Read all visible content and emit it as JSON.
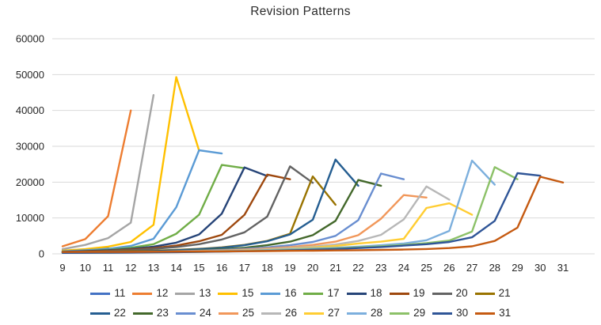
{
  "title": "Revision Patterns",
  "chart_data": {
    "type": "line",
    "title": "Revision Patterns",
    "xlabel": "",
    "ylabel": "",
    "x_categories": [
      9,
      10,
      11,
      12,
      13,
      14,
      15,
      16,
      17,
      18,
      19,
      20,
      21,
      22,
      23,
      24,
      25,
      26,
      27,
      28,
      29,
      30,
      31
    ],
    "ylim": [
      0,
      60000
    ],
    "y_ticks": [
      0,
      10000,
      20000,
      30000,
      40000,
      50000,
      60000
    ],
    "grid": true,
    "legend_position": "bottom",
    "legend_rows": [
      10,
      10
    ],
    "series": [
      {
        "name": "11",
        "color": "#4472C4",
        "x_start": 9,
        "values": [
          800,
          1200,
          1700
        ]
      },
      {
        "name": "12",
        "color": "#ED7D31",
        "x_start": 9,
        "values": [
          2100,
          4100,
          10500,
          40000
        ]
      },
      {
        "name": "13",
        "color": "#A5A5A5",
        "x_start": 9,
        "values": [
          1300,
          2500,
          4400,
          8700,
          44300
        ]
      },
      {
        "name": "15",
        "color": "#FFC000",
        "x_start": 9,
        "values": [
          900,
          1300,
          2000,
          3300,
          8100,
          49300,
          28800
        ]
      },
      {
        "name": "16",
        "color": "#5B9BD5",
        "x_start": 9,
        "values": [
          700,
          1000,
          1400,
          2200,
          4200,
          13000,
          28900,
          28000
        ]
      },
      {
        "name": "17",
        "color": "#70AD47",
        "x_start": 9,
        "values": [
          600,
          800,
          1100,
          1700,
          2700,
          5600,
          10900,
          24800,
          23900
        ]
      },
      {
        "name": "18",
        "color": "#264478",
        "x_start": 9,
        "values": [
          550,
          750,
          1000,
          1400,
          2000,
          3100,
          5400,
          11200,
          24100,
          21700
        ]
      },
      {
        "name": "19",
        "color": "#9E480E",
        "x_start": 9,
        "values": [
          500,
          650,
          850,
          1200,
          1600,
          2300,
          3500,
          5300,
          10900,
          22100,
          20800
        ]
      },
      {
        "name": "20",
        "color": "#636363",
        "x_start": 9,
        "values": [
          450,
          600,
          750,
          1000,
          1400,
          1900,
          2700,
          4000,
          6000,
          10400,
          24400,
          19800
        ]
      },
      {
        "name": "21",
        "color": "#997300",
        "x_start": 9,
        "values": [
          450,
          520,
          620,
          750,
          900,
          1100,
          1400,
          1800,
          2500,
          3600,
          5600,
          21600,
          13700
        ]
      },
      {
        "name": "22",
        "color": "#255E91",
        "x_start": 9,
        "values": [
          400,
          470,
          550,
          650,
          800,
          1000,
          1300,
          1700,
          2400,
          3500,
          5400,
          9500,
          26300,
          19000
        ]
      },
      {
        "name": "23",
        "color": "#43682B",
        "x_start": 9,
        "values": [
          350,
          400,
          470,
          550,
          650,
          800,
          1000,
          1300,
          1700,
          2400,
          3400,
          5200,
          9200,
          20600,
          19000
        ]
      },
      {
        "name": "24",
        "color": "#698ED0",
        "x_start": 9,
        "values": [
          330,
          380,
          440,
          510,
          600,
          720,
          880,
          1100,
          1400,
          1800,
          2400,
          3300,
          5000,
          9400,
          22400,
          20800
        ]
      },
      {
        "name": "25",
        "color": "#F1975A",
        "x_start": 9,
        "values": [
          320,
          360,
          420,
          480,
          560,
          660,
          790,
          950,
          1200,
          1500,
          1900,
          2500,
          3400,
          5200,
          9800,
          16400,
          15700
        ]
      },
      {
        "name": "26",
        "color": "#B7B7B7",
        "x_start": 9,
        "values": [
          300,
          340,
          390,
          450,
          520,
          610,
          720,
          860,
          1050,
          1300,
          1600,
          2000,
          2600,
          3600,
          5300,
          9600,
          18800,
          15100
        ]
      },
      {
        "name": "27",
        "color": "#FFCD33",
        "x_start": 9,
        "values": [
          290,
          330,
          370,
          430,
          490,
          570,
          670,
          790,
          950,
          1150,
          1400,
          1750,
          2200,
          2900,
          3400,
          4200,
          12800,
          14100,
          10900
        ]
      },
      {
        "name": "28",
        "color": "#7CAFDD",
        "x_start": 9,
        "values": [
          280,
          320,
          360,
          410,
          470,
          540,
          630,
          740,
          870,
          1050,
          1250,
          1500,
          1700,
          2000,
          2400,
          2900,
          3800,
          6400,
          26000,
          19300
        ]
      },
      {
        "name": "29",
        "color": "#8CC168",
        "x_start": 9,
        "values": [
          270,
          300,
          340,
          380,
          430,
          490,
          560,
          650,
          760,
          890,
          1050,
          1250,
          1500,
          1800,
          2100,
          2500,
          3000,
          3700,
          6200,
          24200,
          20800
        ]
      },
      {
        "name": "30",
        "color": "#2F5597",
        "x_start": 9,
        "values": [
          260,
          290,
          320,
          360,
          410,
          460,
          530,
          610,
          700,
          820,
          960,
          1150,
          1350,
          1600,
          1900,
          2300,
          2700,
          3300,
          4600,
          9200,
          22500,
          21800
        ]
      },
      {
        "name": "31",
        "color": "#C55A11",
        "x_start": 9,
        "values": [
          500,
          520,
          540,
          560,
          590,
          620,
          650,
          690,
          730,
          780,
          830,
          890,
          950,
          1020,
          1100,
          1200,
          1350,
          1600,
          2100,
          3600,
          7300,
          21500,
          19900
        ]
      }
    ]
  }
}
